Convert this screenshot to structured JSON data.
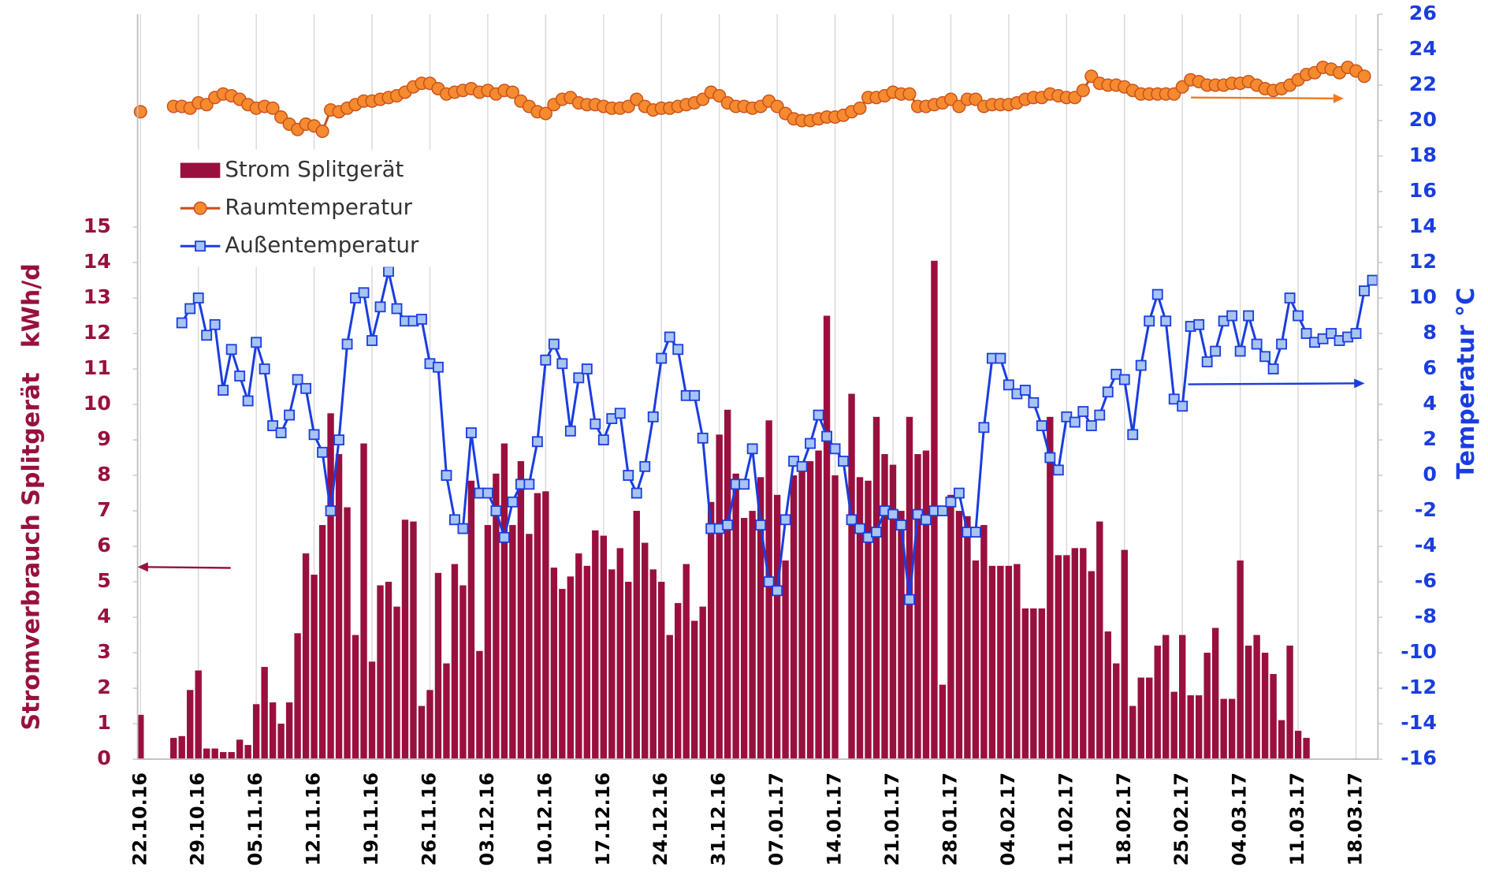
{
  "chart_data": {
    "type": "bar_line",
    "ylabel": "Stromverbrauch Splitgerät   kWh/d",
    "y2label": "Temperatur °C",
    "categories": [
      "22.10.16",
      null,
      null,
      null,
      null,
      null,
      null,
      "29.10.16",
      null,
      null,
      null,
      null,
      null,
      null,
      "05.11.16",
      null,
      null,
      null,
      null,
      null,
      null,
      "12.11.16",
      null,
      null,
      null,
      null,
      null,
      null,
      "19.11.16",
      null,
      null,
      null,
      null,
      null,
      null,
      "26.11.16",
      null,
      null,
      null,
      null,
      null,
      null,
      "03.12.16",
      null,
      null,
      null,
      null,
      null,
      null,
      "10.12.16",
      null,
      null,
      null,
      null,
      null,
      null,
      "17.12.16",
      null,
      null,
      null,
      null,
      null,
      null,
      "24.12.16",
      null,
      null,
      null,
      null,
      null,
      null,
      "31.12.16",
      null,
      null,
      null,
      null,
      null,
      null,
      "07.01.17",
      null,
      null,
      null,
      null,
      null,
      null,
      "14.01.17",
      null,
      null,
      null,
      null,
      null,
      null,
      "21.01.17",
      null,
      null,
      null,
      null,
      null,
      null,
      "28.01.17",
      null,
      null,
      null,
      null,
      null,
      null,
      "04.02.17",
      null,
      null,
      null,
      null,
      null,
      null,
      "11.02.17",
      null,
      null,
      null,
      null,
      null,
      null,
      "18.02.17",
      null,
      null,
      null,
      null,
      null,
      null,
      "25.02.17",
      null,
      null,
      null,
      null,
      null,
      null,
      "04.03.17",
      null,
      null,
      null,
      null,
      null,
      null,
      "11.03.17",
      null,
      null,
      null,
      null,
      null,
      null,
      "18.03.17",
      null,
      null
    ],
    "series": [
      {
        "name": "Strom Splitgerät",
        "type": "bar",
        "color": "#99103f",
        "axis": "y",
        "values": [
          1.25,
          null,
          null,
          null,
          0.6,
          0.65,
          1.95,
          2.5,
          0.3,
          0.3,
          0.2,
          0.2,
          0.55,
          0.4,
          1.55,
          2.6,
          1.6,
          1.0,
          1.6,
          3.55,
          5.8,
          5.2,
          6.6,
          9.75,
          8.6,
          7.1,
          3.5,
          8.9,
          2.75,
          4.9,
          5.0,
          4.3,
          6.75,
          6.7,
          1.5,
          1.95,
          5.25,
          2.7,
          5.5,
          4.9,
          7.85,
          3.05,
          6.6,
          8.05,
          8.9,
          6.6,
          8.4,
          6.35,
          7.5,
          7.55,
          5.4,
          4.8,
          5.15,
          5.8,
          5.45,
          6.45,
          6.3,
          5.35,
          5.95,
          5.0,
          7.0,
          6.1,
          5.35,
          5.0,
          3.5,
          4.4,
          5.5,
          3.9,
          4.3,
          7.25,
          9.15,
          9.85,
          8.05,
          6.8,
          7.0,
          7.95,
          9.55,
          7.45,
          5.6,
          8.0,
          8.1,
          8.4,
          8.7,
          12.5,
          8.0,
          null,
          10.3,
          7.95,
          7.85,
          9.65,
          8.6,
          8.3,
          7.0,
          9.65,
          8.6,
          8.7,
          14.05,
          2.1,
          7.45,
          7.0,
          6.85,
          5.6,
          6.6,
          5.45,
          5.45,
          5.45,
          5.5,
          4.25,
          4.25,
          4.25,
          9.65,
          5.75,
          5.75,
          5.95,
          5.95,
          5.3,
          6.7,
          3.6,
          2.7,
          5.9,
          1.5,
          2.3,
          2.3,
          3.2,
          3.5,
          1.9,
          3.5,
          1.8,
          1.8,
          3.0,
          3.7,
          1.7,
          1.7,
          5.6,
          3.2,
          3.5,
          3.0,
          2.4,
          1.1,
          3.2,
          0.8,
          0.6,
          null,
          null,
          null,
          null,
          null,
          null,
          null,
          null
        ]
      },
      {
        "name": "Raumtemperatur",
        "type": "line",
        "marker": "circle",
        "color": "#c9501c",
        "marker_fill": "#f58a2e",
        "axis": "y2",
        "values": [
          20.5,
          null,
          null,
          null,
          20.8,
          20.8,
          20.7,
          21.0,
          20.9,
          21.3,
          21.5,
          21.4,
          21.2,
          20.9,
          20.7,
          20.8,
          20.7,
          20.2,
          19.8,
          19.5,
          19.8,
          19.7,
          19.4,
          20.6,
          20.5,
          20.7,
          20.9,
          21.1,
          21.1,
          21.2,
          21.3,
          21.4,
          21.6,
          21.9,
          22.1,
          22.1,
          21.8,
          21.5,
          21.6,
          21.7,
          21.8,
          21.6,
          21.7,
          21.5,
          21.7,
          21.6,
          21.1,
          20.8,
          20.5,
          20.4,
          20.9,
          21.2,
          21.3,
          21.0,
          20.9,
          20.9,
          20.8,
          20.7,
          20.7,
          20.8,
          21.2,
          20.8,
          20.6,
          20.7,
          20.7,
          20.8,
          20.9,
          21.0,
          21.2,
          21.6,
          21.4,
          21.0,
          20.8,
          20.8,
          20.7,
          20.8,
          21.1,
          20.8,
          20.4,
          20.1,
          20.0,
          20.0,
          20.1,
          20.2,
          20.2,
          20.3,
          20.5,
          20.7,
          21.3,
          21.3,
          21.4,
          21.6,
          21.5,
          21.5,
          20.8,
          20.8,
          20.9,
          21.0,
          21.2,
          20.8,
          21.2,
          21.2,
          20.8,
          20.9,
          20.9,
          20.9,
          21.0,
          21.2,
          21.3,
          21.3,
          21.5,
          21.4,
          21.3,
          21.3,
          21.7,
          22.5,
          22.1,
          22.0,
          22.0,
          21.9,
          21.7,
          21.5,
          21.5,
          21.5,
          21.5,
          21.5,
          21.9,
          22.3,
          22.2,
          22.0,
          22.0,
          22.0,
          22.1,
          22.1,
          22.2,
          22.0,
          21.8,
          21.7,
          21.8,
          22.0,
          22.3,
          22.6,
          22.7,
          23.0,
          22.9,
          22.7,
          23.0,
          22.8,
          22.5,
          null
        ]
      },
      {
        "name": "Außentemperatur",
        "type": "line",
        "marker": "square",
        "color": "#1a3de0",
        "marker_fill": "#a8c4f2",
        "axis": "y2",
        "values": [
          null,
          null,
          null,
          null,
          null,
          8.6,
          9.4,
          10.0,
          7.9,
          8.5,
          4.8,
          7.1,
          5.6,
          4.2,
          7.5,
          6.0,
          2.8,
          2.4,
          3.4,
          5.4,
          4.9,
          2.3,
          1.3,
          -2.0,
          2.0,
          7.4,
          10.0,
          10.3,
          7.6,
          9.5,
          11.5,
          9.4,
          8.7,
          8.7,
          8.8,
          6.3,
          6.1,
          0.0,
          -2.5,
          -3.0,
          2.4,
          -1.0,
          -1.0,
          -2.0,
          -3.5,
          -1.5,
          -0.5,
          -0.5,
          1.9,
          6.5,
          7.4,
          6.3,
          2.5,
          5.5,
          6.0,
          2.9,
          2.0,
          3.2,
          3.5,
          0.0,
          -1.0,
          0.5,
          3.3,
          6.6,
          7.8,
          7.1,
          4.5,
          4.5,
          2.1,
          -3.0,
          -3.0,
          -2.8,
          -0.5,
          -0.5,
          1.5,
          -2.8,
          -6.0,
          -6.5,
          -2.5,
          0.8,
          0.5,
          1.8,
          3.4,
          2.2,
          1.5,
          0.8,
          -2.5,
          -3.0,
          -3.5,
          -3.2,
          -2.0,
          -2.2,
          -2.8,
          -7.0,
          -2.2,
          -2.5,
          -2.0,
          -2.0,
          -1.5,
          -1.0,
          -3.2,
          -3.2,
          2.7,
          6.6,
          6.6,
          5.1,
          4.6,
          4.8,
          4.1,
          2.8,
          1.0,
          0.3,
          3.3,
          3.0,
          3.6,
          2.8,
          3.4,
          4.7,
          5.7,
          5.4,
          2.3,
          6.2,
          8.7,
          10.2,
          8.7,
          4.3,
          3.9,
          8.4,
          8.5,
          6.4,
          7.0,
          8.7,
          9.0,
          7.0,
          9.0,
          7.4,
          6.7,
          6.0,
          7.4,
          10.0,
          9.0,
          8.0,
          7.5,
          7.7,
          8.0,
          7.6,
          7.8,
          8.0,
          10.4,
          11.0
        ]
      }
    ],
    "ylim": [
      0,
      21
    ],
    "yticks": [
      0,
      1,
      2,
      3,
      4,
      5,
      6,
      7,
      8,
      9,
      10,
      11,
      12,
      13,
      14,
      15
    ],
    "y2lim": [
      -16,
      26
    ],
    "y2ticks": [
      -16,
      -14,
      -12,
      -10,
      -8,
      -6,
      -4,
      -2,
      0,
      2,
      4,
      6,
      8,
      10,
      12,
      14,
      16,
      18,
      20,
      22,
      24,
      26
    ],
    "grid": "x",
    "legend": "upper left"
  }
}
